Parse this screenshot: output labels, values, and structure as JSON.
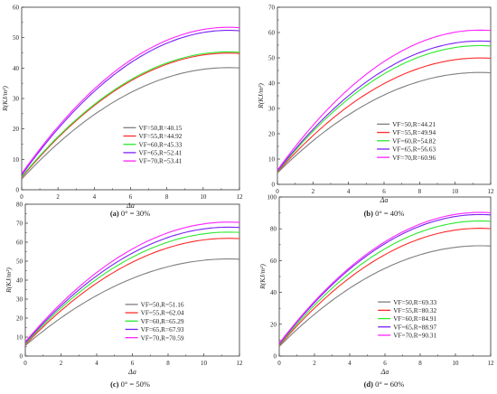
{
  "chart_data": [
    {
      "type": "line",
      "caption_letter": "(a)",
      "caption_text": "0° = 30%",
      "xlabel": "Δa",
      "ylabel": "R(KJ/m²)",
      "xlim": [
        0,
        12
      ],
      "ylim": [
        0,
        60
      ],
      "xticks": [
        "0",
        "2",
        "4",
        "6",
        "8",
        "10",
        "12"
      ],
      "yticks": [
        "0",
        "10",
        "20",
        "30",
        "40",
        "50",
        "60"
      ],
      "legend_position": "lower-right",
      "grid": false,
      "series": [
        {
          "name": "VF=50,R=40.15",
          "color": "#7f7f7f",
          "start": 3.5,
          "peak": 40.15
        },
        {
          "name": "VF=55,R=44.92",
          "color": "#ff2a2a",
          "start": 4.0,
          "peak": 44.92
        },
        {
          "name": "VF=60,R=45.33",
          "color": "#2ee82e",
          "start": 4.3,
          "peak": 45.33
        },
        {
          "name": "VF=65,R=52.41",
          "color": "#7a1ff5",
          "start": 4.8,
          "peak": 52.41
        },
        {
          "name": "VF=70,R=53.41",
          "color": "#ff22ff",
          "start": 5.3,
          "peak": 53.41
        }
      ]
    },
    {
      "type": "line",
      "caption_letter": "(b)",
      "caption_text": "0° = 40%",
      "xlabel": "Δa",
      "ylabel": "R(KJ/m²)",
      "xlim": [
        0,
        12
      ],
      "ylim": [
        0,
        70
      ],
      "xticks": [
        "0",
        "2",
        "4",
        "6",
        "8",
        "10",
        "12"
      ],
      "yticks": [
        "0",
        "10",
        "20",
        "30",
        "40",
        "50",
        "60",
        "70"
      ],
      "legend_position": "lower-right",
      "grid": false,
      "series": [
        {
          "name": "VF=50,R=44.21",
          "color": "#7f7f7f",
          "start": 4.5,
          "peak": 44.21
        },
        {
          "name": "VF=55,R=49.94",
          "color": "#ff2a2a",
          "start": 4.8,
          "peak": 49.94
        },
        {
          "name": "VF=60,R=54.82",
          "color": "#2ee82e",
          "start": 5.0,
          "peak": 54.82
        },
        {
          "name": "VF=65,R=56.63",
          "color": "#7a1ff5",
          "start": 5.3,
          "peak": 56.63
        },
        {
          "name": "VF=70,R=60.96",
          "color": "#ff22ff",
          "start": 5.6,
          "peak": 60.96
        }
      ]
    },
    {
      "type": "line",
      "caption_letter": "(c)",
      "caption_text": "0° = 50%",
      "xlabel": "Δa",
      "ylabel": "R(KJ/m²)",
      "xlim": [
        0,
        12
      ],
      "ylim": [
        0,
        80
      ],
      "xticks": [
        "0",
        "2",
        "4",
        "6",
        "8",
        "10",
        "12"
      ],
      "yticks": [
        "0",
        "10",
        "20",
        "30",
        "40",
        "50",
        "60",
        "70",
        "80"
      ],
      "legend_position": "lower-right",
      "grid": false,
      "series": [
        {
          "name": "VF=50,R=51.16",
          "color": "#7f7f7f",
          "start": 5.5,
          "peak": 51.16
        },
        {
          "name": "VF=55,R=62.04",
          "color": "#ff2a2a",
          "start": 6.0,
          "peak": 62.04
        },
        {
          "name": "VF=60,R=65.29",
          "color": "#2ee82e",
          "start": 6.5,
          "peak": 65.29
        },
        {
          "name": "VF=65,R=67.93",
          "color": "#7a1ff5",
          "start": 7.0,
          "peak": 67.93
        },
        {
          "name": "VF=70,R=70.59",
          "color": "#ff22ff",
          "start": 7.5,
          "peak": 70.59
        }
      ]
    },
    {
      "type": "line",
      "caption_letter": "(d)",
      "caption_text": "0° = 60%",
      "xlabel": "Δa",
      "ylabel": "R(KJ/m²)",
      "xlim": [
        0,
        12
      ],
      "ylim": [
        0,
        100
      ],
      "xticks": [
        "0",
        "2",
        "4",
        "6",
        "8",
        "10",
        "12"
      ],
      "yticks": [
        "0",
        "20",
        "40",
        "60",
        "80",
        "100"
      ],
      "legend_position": "lower-right",
      "grid": false,
      "series": [
        {
          "name": "VF=50,R=69.33",
          "color": "#7f7f7f",
          "start": 6.0,
          "peak": 69.33
        },
        {
          "name": "VF=55,R=80.32",
          "color": "#ff2a2a",
          "start": 6.5,
          "peak": 80.32
        },
        {
          "name": "VF=60,R=84.91",
          "color": "#2ee82e",
          "start": 7.0,
          "peak": 84.91
        },
        {
          "name": "VF=65,R=88.97",
          "color": "#7a1ff5",
          "start": 7.5,
          "peak": 88.97
        },
        {
          "name": "VF=70,R=90.31",
          "color": "#ff22ff",
          "start": 8.0,
          "peak": 90.31
        }
      ]
    }
  ]
}
